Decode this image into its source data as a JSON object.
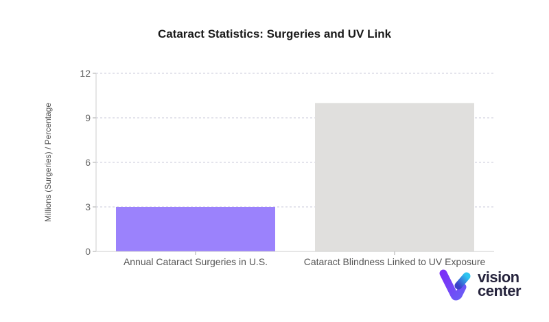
{
  "chart_data": {
    "type": "bar",
    "title": "Cataract Statistics: Surgeries and UV Link",
    "xlabel": "",
    "ylabel": "Millions (Surgeries) / Percentage",
    "categories": [
      "Annual Cataract Surgeries in U.S.",
      "Cataract Blindness Linked to UV Exposure"
    ],
    "values": [
      3,
      10
    ],
    "colors": [
      "#9b82fc",
      "#e0dfdd"
    ],
    "ylim": [
      0,
      12
    ],
    "yticks": [
      0,
      3,
      6,
      9,
      12
    ],
    "grid": true,
    "legend": "none"
  },
  "logo": {
    "line1": "vision",
    "line2": "center"
  }
}
